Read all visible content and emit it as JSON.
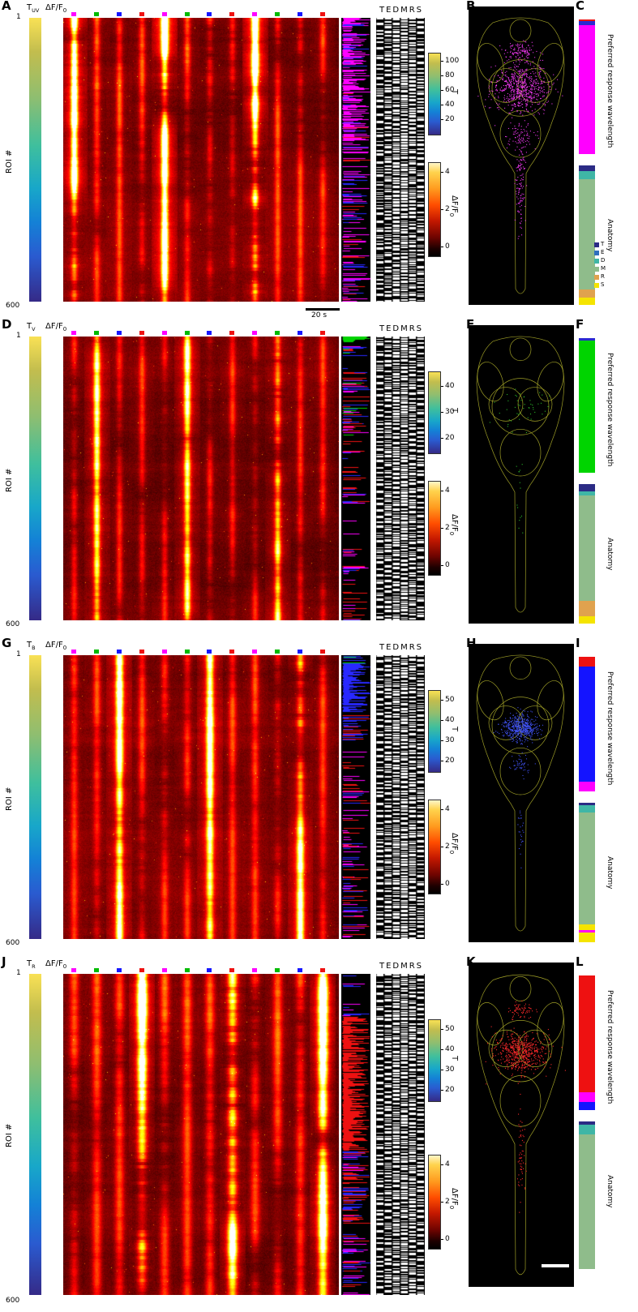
{
  "shared": {
    "t_main": "T",
    "dff_label_main": "ΔF/F",
    "dff_label_sub": "0",
    "roi_axis_label": "ROI #",
    "roi_first": "1",
    "roi_last": "600",
    "raster_header": "TEDMRS",
    "scalebar_label": "20 s",
    "t_cbar_label": "T",
    "wavelength_bar_label": "Preferred response wavelength",
    "anatomy_bar_label": "Anatomy",
    "stim_fracs": [
      0.03,
      0.112,
      0.194,
      0.276,
      0.358,
      0.44,
      0.522,
      0.604,
      0.686,
      0.768,
      0.85,
      0.932
    ],
    "stim_colors": [
      "#ff00ff",
      "#00bb00",
      "#1616ff",
      "#ee1111",
      "#ff00ff",
      "#00bb00",
      "#1616ff",
      "#ee1111",
      "#ff00ff",
      "#00bb00",
      "#1616ff",
      "#ee1111"
    ],
    "raster_duty": [
      0.35,
      0.45,
      0.55,
      0.6,
      0.5,
      0.4
    ],
    "legend": [
      {
        "label": "T",
        "color": "#2b2b85"
      },
      {
        "label": "E",
        "color": "#2e6fbe"
      },
      {
        "label": "D",
        "color": "#3fb6a6"
      },
      {
        "label": "M",
        "color": "#8fbc8b"
      },
      {
        "label": "R",
        "color": "#e0a24e"
      },
      {
        "label": "S",
        "color": "#f5e400"
      }
    ]
  },
  "rows": [
    {
      "letter": "A",
      "map_letter": "B",
      "bars_letter": "C",
      "t_sub": "UV",
      "seed": 11,
      "pref_index": 0,
      "heat": {
        "amp_pref": 0.72,
        "amp_other": 0.18,
        "top_boost": 0.35,
        "stripe_w": 2.5
      },
      "t_ticks": [
        {
          "v": "100",
          "f": 0.1
        },
        {
          "v": "80",
          "f": 0.28
        },
        {
          "v": "60",
          "f": 0.46
        },
        {
          "v": "40",
          "f": 0.64
        },
        {
          "v": "20",
          "f": 0.82
        }
      ],
      "dff_ticks": [
        {
          "v": "4",
          "f": 0.1
        },
        {
          "v": "2",
          "f": 0.5
        },
        {
          "v": "0",
          "f": 0.9
        }
      ],
      "wl_col": [
        {
          "f0": 0,
          "f1": 0.48,
          "marks": [
            [
              "#ff00ff",
              0.72
            ],
            [
              "#2828ff",
              0.12
            ],
            [
              "#ee1111",
              0.05
            ]
          ]
        },
        {
          "f0": 0.48,
          "f1": 1,
          "marks": [
            [
              "#ff00ff",
              0.28
            ],
            [
              "#2828ff",
              0.1
            ],
            [
              "#ee1111",
              0.07
            ]
          ]
        }
      ],
      "dots": {
        "color": "#ff3cff",
        "clusters": [
          [
            64,
            100,
            17,
            14,
            650
          ],
          [
            64,
            56,
            10,
            6,
            120
          ],
          [
            64,
            220,
            3,
            28,
            130
          ],
          [
            64,
            160,
            8,
            8,
            80
          ]
        ]
      },
      "wavelength_bar": [
        [
          "#ee1111",
          0.01
        ],
        [
          "#2a2ad0",
          0.03
        ],
        [
          "#ff00ff",
          0.96
        ]
      ],
      "anatomy_bar": [
        [
          "#2b2b85",
          0.04
        ],
        [
          "#3fb6a6",
          0.06
        ],
        [
          "#8fbc8b",
          0.79
        ],
        [
          "#e0a24e",
          0.06
        ],
        [
          "#f5e400",
          0.05
        ]
      ],
      "show_scalebar": true,
      "show_legend": true,
      "show_map_scalebar": false
    },
    {
      "letter": "D",
      "map_letter": "E",
      "bars_letter": "F",
      "t_sub": "V",
      "seed": 22,
      "pref_index": 1,
      "heat": {
        "amp_pref": 0.5,
        "amp_other": 0.16,
        "top_boost": 0.12,
        "stripe_w": 2.5
      },
      "t_ticks": [
        {
          "v": "40",
          "f": 0.18
        },
        {
          "v": "30",
          "f": 0.5
        },
        {
          "v": "20",
          "f": 0.82
        }
      ],
      "dff_ticks": [
        {
          "v": "4",
          "f": 0.1
        },
        {
          "v": "2",
          "f": 0.5
        },
        {
          "v": "0",
          "f": 0.9
        }
      ],
      "wl_col": [
        {
          "f0": 0,
          "f1": 0.02,
          "marks": [
            [
              "#00d400",
              0.9
            ]
          ]
        },
        {
          "f0": 0.02,
          "f1": 0.35,
          "marks": [
            [
              "#2828ff",
              0.18
            ],
            [
              "#ee1111",
              0.1
            ],
            [
              "#ff00ff",
              0.08
            ],
            [
              "#00d400",
              0.04
            ]
          ]
        },
        {
          "f0": 0.35,
          "f1": 1,
          "marks": [
            [
              "#ee1111",
              0.1
            ],
            [
              "#ff00ff",
              0.1
            ],
            [
              "#2828ff",
              0.05
            ]
          ]
        }
      ],
      "dots": {
        "color": "#2ecc2e",
        "clusters": [
          [
            64,
            100,
            15,
            12,
            48
          ],
          [
            64,
            200,
            3,
            25,
            14
          ]
        ]
      },
      "wavelength_bar": [
        [
          "#2a2ad0",
          0.02
        ],
        [
          "#00d400",
          0.98
        ]
      ],
      "anatomy_bar": [
        [
          "#2b2b85",
          0.05
        ],
        [
          "#3fb6a6",
          0.03
        ],
        [
          "#8fbc8b",
          0.76
        ],
        [
          "#e0a24e",
          0.11
        ],
        [
          "#f5e400",
          0.05
        ]
      ],
      "show_scalebar": false,
      "show_legend": false,
      "show_map_scalebar": false
    },
    {
      "letter": "G",
      "map_letter": "H",
      "bars_letter": "I",
      "t_sub": "B",
      "seed": 33,
      "pref_index": 2,
      "heat": {
        "amp_pref": 0.6,
        "amp_other": 0.17,
        "top_boost": 0.15,
        "stripe_w": 2.8
      },
      "t_ticks": [
        {
          "v": "50",
          "f": 0.12
        },
        {
          "v": "40",
          "f": 0.37
        },
        {
          "v": "30",
          "f": 0.62
        },
        {
          "v": "20",
          "f": 0.87
        }
      ],
      "dff_ticks": [
        {
          "v": "4",
          "f": 0.1
        },
        {
          "v": "2",
          "f": 0.5
        },
        {
          "v": "0",
          "f": 0.9
        }
      ],
      "wl_col": [
        {
          "f0": 0,
          "f1": 0.03,
          "marks": [
            [
              "#00d400",
              0.4
            ],
            [
              "#2828ff",
              0.4
            ]
          ]
        },
        {
          "f0": 0.03,
          "f1": 0.2,
          "marks": [
            [
              "#2828ff",
              0.97
            ]
          ]
        },
        {
          "f0": 0.2,
          "f1": 0.3,
          "marks": [
            [
              "#2828ff",
              0.45
            ],
            [
              "#ee1111",
              0.18
            ]
          ]
        },
        {
          "f0": 0.3,
          "f1": 1,
          "marks": [
            [
              "#ff00ff",
              0.15
            ],
            [
              "#ee1111",
              0.12
            ],
            [
              "#2828ff",
              0.06
            ]
          ]
        }
      ],
      "dots": {
        "color": "#4456ff",
        "clusters": [
          [
            64,
            104,
            11,
            8,
            520
          ],
          [
            64,
            150,
            6,
            6,
            50
          ],
          [
            64,
            235,
            2,
            22,
            25
          ]
        ]
      },
      "wavelength_bar": [
        [
          "#ee1111",
          0.07
        ],
        [
          "#1414ff",
          0.86
        ],
        [
          "#ff00ff",
          0.07
        ]
      ],
      "anatomy_bar": [
        [
          "#2b2b85",
          0.02
        ],
        [
          "#3fb6a6",
          0.05
        ],
        [
          "#8fbc8b",
          0.8
        ],
        [
          "#f5e400",
          0.04
        ],
        [
          "#ff00ff",
          0.02
        ],
        [
          "#f5e400",
          0.07
        ]
      ],
      "show_scalebar": false,
      "show_legend": false,
      "show_map_scalebar": false
    },
    {
      "letter": "J",
      "map_letter": "K",
      "bars_letter": "L",
      "t_sub": "R",
      "seed": 44,
      "pref_index": 3,
      "heat": {
        "amp_pref": 0.7,
        "amp_other": 0.18,
        "top_boost": 0.25,
        "stripe_w": 3.5
      },
      "t_ticks": [
        {
          "v": "50",
          "f": 0.12
        },
        {
          "v": "40",
          "f": 0.37
        },
        {
          "v": "30",
          "f": 0.62
        },
        {
          "v": "20",
          "f": 0.87
        }
      ],
      "dff_ticks": [
        {
          "v": "4",
          "f": 0.1
        },
        {
          "v": "2",
          "f": 0.5
        },
        {
          "v": "0",
          "f": 0.9
        }
      ],
      "wl_col": [
        {
          "f0": 0,
          "f1": 0.13,
          "marks": [
            [
              "#2828ff",
              0.3
            ],
            [
              "#ff00ff",
              0.15
            ]
          ]
        },
        {
          "f0": 0.13,
          "f1": 0.55,
          "marks": [
            [
              "#ee1111",
              0.95
            ]
          ]
        },
        {
          "f0": 0.55,
          "f1": 0.78,
          "marks": [
            [
              "#ee1111",
              0.3
            ],
            [
              "#2828ff",
              0.2
            ],
            [
              "#ff00ff",
              0.12
            ]
          ]
        },
        {
          "f0": 0.78,
          "f1": 1,
          "marks": [
            [
              "#ff00ff",
              0.2
            ],
            [
              "#2828ff",
              0.12
            ],
            [
              "#ee1111",
              0.1
            ]
          ]
        }
      ],
      "dots": {
        "color": "#ff2a2a",
        "clusters": [
          [
            64,
            102,
            15,
            11,
            600
          ],
          [
            64,
            54,
            8,
            5,
            70
          ],
          [
            64,
            225,
            2.5,
            27,
            60
          ]
        ]
      },
      "wavelength_bar": [
        [
          "#ee1111",
          0.87
        ],
        [
          "#ff00ff",
          0.07
        ],
        [
          "#1414ff",
          0.06
        ]
      ],
      "anatomy_bar": [
        [
          "#2b2b85",
          0.02
        ],
        [
          "#3fb6a6",
          0.07
        ],
        [
          "#8fbc8b",
          0.91
        ]
      ],
      "show_scalebar": false,
      "show_legend": false,
      "show_map_scalebar": true
    }
  ]
}
